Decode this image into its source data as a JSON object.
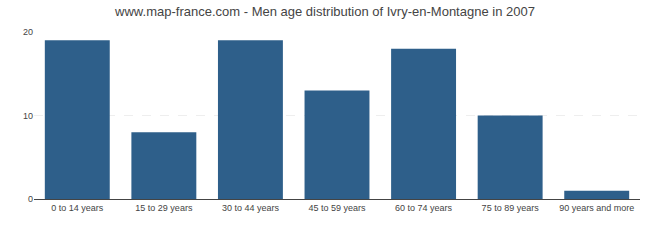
{
  "chart_data": {
    "type": "bar",
    "title": "www.map-france.com - Men age distribution of Ivry-en-Montagne in 2007",
    "categories": [
      "0 to 14 years",
      "15 to 29 years",
      "30 to 44 years",
      "45 to 59 years",
      "60 to 74 years",
      "75 to 89 years",
      "90 years and more"
    ],
    "values": [
      19,
      8,
      19,
      13,
      18,
      10,
      1
    ],
    "color": "#2e5f8a",
    "ylim": [
      0,
      20
    ],
    "yticks": [
      0,
      10,
      20
    ],
    "grid": true
  }
}
